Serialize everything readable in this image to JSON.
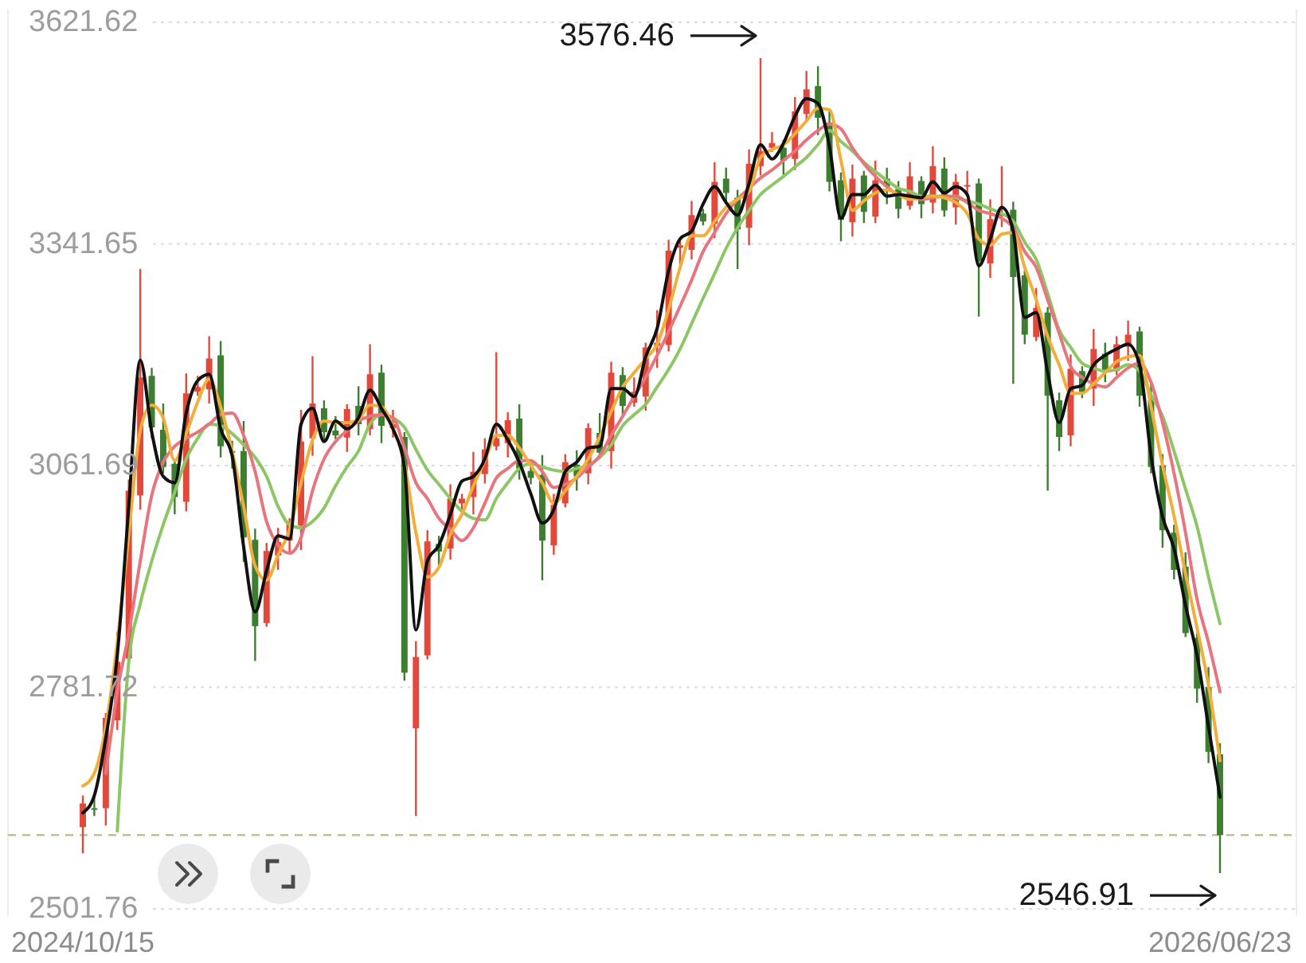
{
  "chart_data": {
    "type": "candlestick",
    "categories": [
      "2024/10/15",
      null,
      null,
      null,
      null,
      null,
      null,
      null,
      null,
      null,
      null,
      null,
      null,
      null,
      null,
      null,
      null,
      null,
      null,
      null,
      null,
      null,
      null,
      null,
      null,
      null,
      null,
      null,
      null,
      null,
      null,
      null,
      null,
      null,
      null,
      null,
      null,
      null,
      null,
      null,
      null,
      null,
      null,
      null,
      null,
      null,
      null,
      null,
      null,
      null,
      null,
      null,
      null,
      null,
      null,
      null,
      null,
      null,
      null,
      null,
      null,
      null,
      null,
      null,
      null,
      null,
      null,
      null,
      null,
      null,
      null,
      null,
      null,
      null,
      null,
      null,
      null,
      null,
      null,
      null,
      null,
      null,
      null,
      null,
      null,
      null,
      null,
      null,
      null,
      null,
      null,
      null,
      null,
      null,
      null,
      null,
      null,
      null,
      null,
      "2026/06/23"
    ],
    "ohlc": [
      [
        2605,
        2645,
        2572,
        2635
      ],
      [
        2629,
        2647,
        2619,
        2627
      ],
      [
        2629,
        2749,
        2607,
        2743
      ],
      [
        2740,
        2852,
        2728,
        2814
      ],
      [
        2818,
        3044,
        2813,
        3030
      ],
      [
        3024,
        3310,
        3006,
        3173
      ],
      [
        3175,
        3185,
        3096,
        3110
      ],
      [
        3107,
        3140,
        3052,
        3060
      ],
      [
        3064,
        3070,
        3000,
        3022
      ],
      [
        3016,
        3178,
        3004,
        3153
      ],
      [
        3155,
        3175,
        3150,
        3161
      ],
      [
        3158,
        3225,
        3140,
        3197
      ],
      [
        3201,
        3219,
        3072,
        3086
      ],
      [
        3080,
        3093,
        3058,
        3078
      ],
      [
        3080,
        3118,
        2940,
        2971
      ],
      [
        2968,
        2982,
        2815,
        2859
      ],
      [
        2863,
        2964,
        2858,
        2954
      ],
      [
        2948,
        2983,
        2930,
        2965
      ],
      [
        2967,
        2995,
        2953,
        2989
      ],
      [
        2986,
        3132,
        2955,
        3092
      ],
      [
        3096,
        3200,
        3074,
        3140
      ],
      [
        3134,
        3144,
        3092,
        3104
      ],
      [
        3106,
        3124,
        3095,
        3100
      ],
      [
        3097,
        3139,
        3079,
        3133
      ],
      [
        3137,
        3162,
        3100,
        3114
      ],
      [
        3108,
        3215,
        3100,
        3177
      ],
      [
        3179,
        3189,
        3090,
        3112
      ],
      [
        3109,
        3132,
        3097,
        3114
      ],
      [
        3098,
        3104,
        2790,
        2800
      ],
      [
        2730,
        2840,
        2619,
        2820
      ],
      [
        2822,
        2980,
        2817,
        2966
      ],
      [
        2963,
        2973,
        2935,
        2953
      ],
      [
        2957,
        3038,
        2943,
        3020
      ],
      [
        3014,
        3026,
        3006,
        3020
      ],
      [
        3022,
        3079,
        3000,
        3054
      ],
      [
        3051,
        3096,
        3039,
        3082
      ],
      [
        3086,
        3205,
        3081,
        3096
      ],
      [
        3090,
        3129,
        3072,
        3119
      ],
      [
        3121,
        3139,
        3044,
        3058
      ],
      [
        3055,
        3061,
        3038,
        3046
      ],
      [
        3050,
        3075,
        2917,
        2967
      ],
      [
        2961,
        3026,
        2949,
        3012
      ],
      [
        3014,
        3076,
        3009,
        3066
      ],
      [
        3063,
        3081,
        3030,
        3048
      ],
      [
        3052,
        3115,
        3038,
        3109
      ],
      [
        3103,
        3128,
        3070,
        3078
      ],
      [
        3080,
        3193,
        3058,
        3179
      ],
      [
        3176,
        3186,
        3125,
        3137
      ],
      [
        3141,
        3173,
        3136,
        3155
      ],
      [
        3149,
        3217,
        3131,
        3211
      ],
      [
        3213,
        3258,
        3185,
        3217
      ],
      [
        3214,
        3347,
        3206,
        3333
      ],
      [
        3337,
        3350,
        3315,
        3340
      ],
      [
        3334,
        3396,
        3322,
        3378
      ],
      [
        3380,
        3386,
        3365,
        3370
      ],
      [
        3367,
        3445,
        3349,
        3420
      ],
      [
        3424,
        3438,
        3392,
        3406
      ],
      [
        3400,
        3410,
        3310,
        3360
      ],
      [
        3362,
        3461,
        3340,
        3443
      ],
      [
        3440,
        3576.46,
        3428,
        3459
      ],
      [
        3463,
        3483,
        3458,
        3469
      ],
      [
        3463,
        3473,
        3429,
        3447
      ],
      [
        3449,
        3527,
        3435,
        3509
      ],
      [
        3506,
        3560,
        3498,
        3537
      ],
      [
        3541,
        3566,
        3479,
        3501
      ],
      [
        3495,
        3509,
        3408,
        3420
      ],
      [
        3422,
        3432,
        3345,
        3372
      ],
      [
        3369,
        3442,
        3351,
        3424
      ],
      [
        3428,
        3434,
        3368,
        3382
      ],
      [
        3376,
        3447,
        3368,
        3422
      ],
      [
        3424,
        3438,
        3392,
        3414
      ],
      [
        3411,
        3421,
        3374,
        3386
      ],
      [
        3390,
        3445,
        3385,
        3427
      ],
      [
        3421,
        3427,
        3374,
        3392
      ],
      [
        3394,
        3465,
        3380,
        3440
      ],
      [
        3437,
        3451,
        3376,
        3384
      ],
      [
        3388,
        3430,
        3366,
        3420
      ],
      [
        3414,
        3434,
        3402,
        3416
      ],
      [
        3418,
        3424,
        3250,
        3320
      ],
      [
        3317,
        3398,
        3299,
        3373
      ],
      [
        3377,
        3440,
        3363,
        3380
      ],
      [
        3385,
        3395,
        3165,
        3300
      ],
      [
        3302,
        3308,
        3215,
        3227
      ],
      [
        3224,
        3286,
        3219,
        3261
      ],
      [
        3255,
        3262,
        3030,
        3150
      ],
      [
        3144,
        3154,
        3080,
        3098
      ],
      [
        3100,
        3202,
        3086,
        3184
      ],
      [
        3181,
        3187,
        3147,
        3155
      ],
      [
        3159,
        3234,
        3137,
        3209
      ],
      [
        3203,
        3217,
        3167,
        3179
      ],
      [
        3181,
        3225,
        3176,
        3215
      ],
      [
        3212,
        3245,
        3194,
        3227
      ],
      [
        3231,
        3237,
        3136,
        3150
      ],
      [
        3144,
        3169,
        3052,
        3060
      ],
      [
        3062,
        3076,
        2958,
        2980
      ],
      [
        2977,
        2987,
        2918,
        2930
      ],
      [
        2934,
        2952,
        2845,
        2850
      ],
      [
        2844,
        2850,
        2762,
        2780
      ],
      [
        2782,
        2807,
        2686,
        2700
      ],
      [
        2697,
        2711,
        2546.91,
        2595
      ]
    ],
    "colors": [
      "#e3493b",
      "#3d7e30",
      "#e3493b",
      "#e3493b",
      "#e3493b",
      "#e3493b",
      "#3d7e30",
      "#3d7e30",
      "#3d7e30",
      "#e3493b",
      "#e3493b",
      "#e3493b",
      "#3d7e30",
      "#3d7e30",
      "#3d7e30",
      "#3d7e30",
      "#e3493b",
      "#e3493b",
      "#e3493b",
      "#e3493b",
      "#e3493b",
      "#3d7e30",
      "#3d7e30",
      "#e3493b",
      "#3d7e30",
      "#e3493b",
      "#3d7e30",
      "#e3493b",
      "#3d7e30",
      "#e3493b",
      "#e3493b",
      "#3d7e30",
      "#e3493b",
      "#e3493b",
      "#e3493b",
      "#e3493b",
      "#e3493b",
      "#e3493b",
      "#3d7e30",
      "#3d7e30",
      "#3d7e30",
      "#e3493b",
      "#e3493b",
      "#3d7e30",
      "#e3493b",
      "#3d7e30",
      "#e3493b",
      "#3d7e30",
      "#e3493b",
      "#e3493b",
      "#e3493b",
      "#e3493b",
      "#e3493b",
      "#e3493b",
      "#3d7e30",
      "#e3493b",
      "#3d7e30",
      "#3d7e30",
      "#e3493b",
      "#e3493b",
      "#e3493b",
      "#3d7e30",
      "#e3493b",
      "#e3493b",
      "#3d7e30",
      "#3d7e30",
      "#3d7e30",
      "#e3493b",
      "#3d7e30",
      "#e3493b",
      "#3d7e30",
      "#3d7e30",
      "#e3493b",
      "#3d7e30",
      "#e3493b",
      "#3d7e30",
      "#e3493b",
      "#e3493b",
      "#3d7e30",
      "#e3493b",
      "#e3493b",
      "#3d7e30",
      "#3d7e30",
      "#e3493b",
      "#3d7e30",
      "#3d7e30",
      "#e3493b",
      "#3d7e30",
      "#e3493b",
      "#3d7e30",
      "#e3493b",
      "#e3493b",
      "#3d7e30",
      "#3d7e30",
      "#3d7e30",
      "#3d7e30",
      "#3d7e30",
      "#3d7e30",
      "#3d7e30",
      "#3d7e30"
    ],
    "series": [
      {
        "type": "line",
        "color": "#8cc665",
        "values": [
          null,
          null,
          null,
          2600,
          2814,
          2887,
          2941,
          2987,
          3028,
          3070,
          3096,
          3114,
          3112,
          3102,
          3088,
          3072,
          3048,
          3010,
          2987,
          2983,
          2991,
          3008,
          3036,
          3060,
          3080,
          3114,
          3126,
          3122,
          3110,
          3082,
          3056,
          3038,
          3020,
          3004,
          2995,
          2993,
          3020,
          3040,
          3058,
          3064,
          3060,
          3056,
          3054,
          3058,
          3062,
          3072,
          3088,
          3112,
          3126,
          3139,
          3161,
          3183,
          3209,
          3241,
          3273,
          3304,
          3336,
          3362,
          3384,
          3404,
          3416,
          3427,
          3439,
          3451,
          3467,
          3485,
          3471,
          3459,
          3445,
          3433,
          3422,
          3412,
          3408,
          3402,
          3402,
          3402,
          3400,
          3396,
          3392,
          3386,
          3380,
          3370,
          3344,
          3322,
          3279,
          3233,
          3211,
          3191,
          3185,
          3181,
          3183,
          3189,
          3181,
          3151,
          3124,
          3080,
          3032,
          2985,
          2921,
          2862
        ]
      },
      {
        "type": "line",
        "color": "#e8747e",
        "values": [
          null,
          null,
          2673,
          2776,
          2850,
          2941,
          3024,
          3066,
          3086,
          3096,
          3104,
          3114,
          3126,
          3128,
          3100,
          3054,
          2991,
          2961,
          2951,
          2971,
          3030,
          3070,
          3092,
          3106,
          3118,
          3124,
          3126,
          3122,
          3084,
          3040,
          3020,
          2995,
          2981,
          2967,
          2983,
          3014,
          3046,
          3058,
          3068,
          3068,
          3054,
          3034,
          3038,
          3046,
          3060,
          3074,
          3100,
          3124,
          3149,
          3173,
          3201,
          3231,
          3263,
          3296,
          3332,
          3356,
          3380,
          3398,
          3412,
          3425,
          3435,
          3447,
          3459,
          3473,
          3485,
          3493,
          3487,
          3463,
          3443,
          3427,
          3414,
          3404,
          3402,
          3398,
          3400,
          3402,
          3402,
          3394,
          3384,
          3380,
          3374,
          3362,
          3332,
          3312,
          3271,
          3229,
          3187,
          3173,
          3165,
          3161,
          3173,
          3185,
          3191,
          3167,
          3116,
          3052,
          2977,
          2893,
          2838,
          2776
        ]
      },
      {
        "type": "line",
        "color": "#f2ad3a",
        "values": [
          2657,
          2673,
          2732,
          2838,
          2975,
          3106,
          3138,
          3122,
          3068,
          3102,
          3142,
          3171,
          3136,
          3080,
          3010,
          2935,
          2917,
          2949,
          2981,
          3040,
          3094,
          3118,
          3116,
          3116,
          3120,
          3138,
          3136,
          3110,
          3064,
          2977,
          2921,
          2933,
          2975,
          3000,
          3036,
          3068,
          3100,
          3100,
          3084,
          3062,
          3040,
          3014,
          3030,
          3048,
          3070,
          3098,
          3130,
          3161,
          3179,
          3197,
          3215,
          3259,
          3312,
          3352,
          3352,
          3370,
          3388,
          3398,
          3408,
          3451,
          3461,
          3467,
          3481,
          3497,
          3513,
          3511,
          3447,
          3384,
          3396,
          3406,
          3410,
          3404,
          3398,
          3400,
          3402,
          3400,
          3394,
          3380,
          3348,
          3340,
          3354,
          3356,
          3312,
          3271,
          3225,
          3189,
          3153,
          3153,
          3165,
          3179,
          3193,
          3199,
          3201,
          3136,
          3062,
          2998,
          2925,
          2857,
          2784,
          2689
        ]
      },
      {
        "type": "line",
        "color": "#111111",
        "values": [
          2623,
          2645,
          2718,
          2822,
          3010,
          3195,
          3104,
          3048,
          3040,
          3128,
          3169,
          3177,
          3108,
          3074,
          2959,
          2877,
          2929,
          2973,
          2969,
          3114,
          3134,
          3092,
          3118,
          3108,
          3122,
          3157,
          3134,
          3108,
          3060,
          2854,
          2941,
          2961,
          3000,
          3042,
          3048,
          3070,
          3114,
          3094,
          3066,
          3026,
          2989,
          3006,
          3054,
          3066,
          3084,
          3086,
          3159,
          3159,
          3149,
          3199,
          3235,
          3308,
          3348,
          3358,
          3392,
          3414,
          3394,
          3378,
          3418,
          3467,
          3449,
          3469,
          3503,
          3525,
          3519,
          3465,
          3374,
          3404,
          3404,
          3416,
          3402,
          3404,
          3402,
          3400,
          3420,
          3406,
          3414,
          3404,
          3314,
          3348,
          3388,
          3358,
          3249,
          3255,
          3179,
          3116,
          3159,
          3163,
          3189,
          3201,
          3209,
          3215,
          3189,
          3074,
          2997,
          2957,
          2885,
          2822,
          2732,
          2643
        ]
      }
    ],
    "ylim": [
      2501.76,
      3621.62
    ],
    "yticks": [
      2501.76,
      2781.72,
      3061.69,
      3341.65,
      3621.62
    ],
    "grid": "y",
    "ref_lines": [
      {
        "axis": "y",
        "value": 2595,
        "color": "#c4bd98",
        "line_style": "dashed"
      }
    ],
    "annotations": [
      "3576.46",
      "2546.91"
    ]
  }
}
